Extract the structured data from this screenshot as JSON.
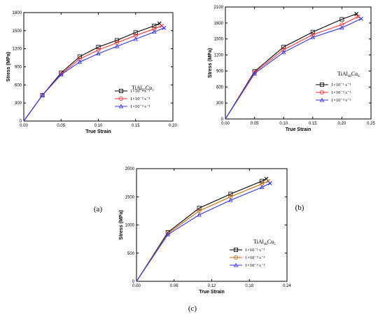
{
  "chart_data": [
    {
      "type": "line",
      "panel_label": "(a)",
      "xlabel": "True Strain",
      "ylabel": "Stress (MPa)",
      "xlim": [
        0,
        0.2
      ],
      "ylim": [
        0,
        1800
      ],
      "xticks": [
        "0.00",
        "0.05",
        "0.10",
        "0.15",
        "0.20"
      ],
      "xtick_values": [
        0,
        0.05,
        0.1,
        0.15,
        0.2
      ],
      "yticks": [
        "0",
        "300",
        "600",
        "900",
        "1200",
        "1500",
        "1800"
      ],
      "ytick_values": [
        0,
        300,
        600,
        900,
        1200,
        1500,
        1800
      ],
      "legend_title": {
        "base": "TiAl",
        "sub1": "50",
        "mid": "Cu",
        "sub2": "3"
      },
      "legend_position": "lower-right",
      "series": [
        {
          "name": "1×10⁻¹ s⁻¹",
          "color": "#000000",
          "marker": "square",
          "x": [
            0,
            0.025,
            0.05,
            0.075,
            0.1,
            0.125,
            0.15,
            0.175,
            0.182
          ],
          "y": [
            0,
            430,
            800,
            1070,
            1230,
            1340,
            1470,
            1580,
            1620
          ]
        },
        {
          "name": "1×10⁻² s⁻¹",
          "color": "#ff3333",
          "marker": "circle",
          "x": [
            0,
            0.025,
            0.05,
            0.075,
            0.1,
            0.125,
            0.15,
            0.175,
            0.185
          ],
          "y": [
            0,
            430,
            780,
            1030,
            1180,
            1300,
            1420,
            1530,
            1580
          ]
        },
        {
          "name": "1×10⁻³ s⁻¹",
          "color": "#3333ff",
          "marker": "triangle",
          "x": [
            0,
            0.025,
            0.05,
            0.075,
            0.1,
            0.125,
            0.15,
            0.175,
            0.188
          ],
          "y": [
            0,
            430,
            770,
            980,
            1120,
            1240,
            1360,
            1480,
            1545
          ]
        }
      ]
    },
    {
      "type": "line",
      "panel_label": "(b)",
      "xlabel": "True Strain",
      "ylabel": "Stress (MPa)",
      "xlim": [
        0,
        0.25
      ],
      "ylim": [
        0,
        2100
      ],
      "xticks": [
        "0.00",
        "0.05",
        "0.10",
        "0.15",
        "0.20",
        "0.25"
      ],
      "xtick_values": [
        0,
        0.05,
        0.1,
        0.15,
        0.2,
        0.25
      ],
      "yticks": [
        "0",
        "300",
        "600",
        "900",
        "1200",
        "1500",
        "1800",
        "2100"
      ],
      "ytick_values": [
        0,
        300,
        600,
        900,
        1200,
        1500,
        1800,
        2100
      ],
      "legend_title": {
        "base": "TiAl",
        "sub1": "48",
        "mid": "Cu",
        "sub2": "4"
      },
      "legend_position": "lower-right",
      "series": [
        {
          "name": "1×10⁻¹ s⁻¹",
          "color": "#000000",
          "marker": "square",
          "x": [
            0,
            0.05,
            0.1,
            0.15,
            0.2,
            0.225
          ],
          "y": [
            0,
            890,
            1350,
            1630,
            1870,
            1970
          ]
        },
        {
          "name": "1×10⁻² s⁻¹",
          "color": "#ff3333",
          "marker": "circle",
          "x": [
            0,
            0.05,
            0.1,
            0.15,
            0.2,
            0.228
          ],
          "y": [
            0,
            870,
            1300,
            1580,
            1770,
            1920
          ]
        },
        {
          "name": "1×10⁻³ s⁻¹",
          "color": "#3333ff",
          "marker": "triangle",
          "x": [
            0,
            0.05,
            0.1,
            0.15,
            0.2,
            0.233
          ],
          "y": [
            0,
            850,
            1250,
            1530,
            1710,
            1880
          ]
        }
      ]
    },
    {
      "type": "line",
      "panel_label": "(c)",
      "xlabel": "True Strain",
      "ylabel": "Stress (MPa)",
      "xlim": [
        0,
        0.24
      ],
      "ylim": [
        0,
        2000
      ],
      "xticks": [
        "0.00",
        "0.06",
        "0.12",
        "0.18",
        "0.24"
      ],
      "xtick_values": [
        0,
        0.06,
        0.12,
        0.18,
        0.24
      ],
      "yticks": [
        "0",
        "500",
        "1000",
        "1500",
        "2000"
      ],
      "ytick_values": [
        0,
        500,
        1000,
        1500,
        2000
      ],
      "legend_title": {
        "base": "TiAl",
        "sub1": "46",
        "mid": "Cu",
        "sub2": "5"
      },
      "legend_position": "lower-right",
      "series": [
        {
          "name": "1×10⁻¹ s⁻¹",
          "color": "#000000",
          "marker": "square",
          "x": [
            0,
            0.05,
            0.1,
            0.15,
            0.2,
            0.207
          ],
          "y": [
            0,
            870,
            1300,
            1550,
            1780,
            1820
          ]
        },
        {
          "name": "1×10⁻² s⁻¹",
          "color": "#cc6600",
          "marker": "circle",
          "x": [
            0,
            0.05,
            0.1,
            0.15,
            0.2,
            0.21
          ],
          "y": [
            0,
            850,
            1250,
            1500,
            1730,
            1780
          ]
        },
        {
          "name": "1×10⁻³ s⁻¹",
          "color": "#3333ff",
          "marker": "triangle",
          "x": [
            0,
            0.05,
            0.1,
            0.15,
            0.2,
            0.213
          ],
          "y": [
            0,
            830,
            1180,
            1440,
            1670,
            1740
          ]
        }
      ]
    }
  ]
}
